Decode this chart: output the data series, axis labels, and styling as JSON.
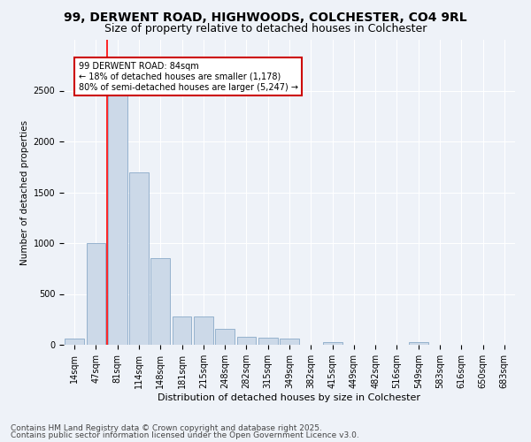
{
  "title1": "99, DERWENT ROAD, HIGHWOODS, COLCHESTER, CO4 9RL",
  "title2": "Size of property relative to detached houses in Colchester",
  "xlabel": "Distribution of detached houses by size in Colchester",
  "ylabel": "Number of detached properties",
  "categories": [
    "14sqm",
    "47sqm",
    "81sqm",
    "114sqm",
    "148sqm",
    "181sqm",
    "215sqm",
    "248sqm",
    "282sqm",
    "315sqm",
    "349sqm",
    "382sqm",
    "415sqm",
    "449sqm",
    "482sqm",
    "516sqm",
    "549sqm",
    "583sqm",
    "616sqm",
    "650sqm",
    "683sqm"
  ],
  "values": [
    60,
    1000,
    2500,
    1700,
    850,
    280,
    280,
    160,
    80,
    70,
    60,
    0,
    30,
    0,
    0,
    0,
    30,
    0,
    0,
    0,
    0
  ],
  "bar_color": "#ccd9e8",
  "bar_edge_color": "#8aaac8",
  "red_line_x": 1.5,
  "annotation_text": "99 DERWENT ROAD: 84sqm\n← 18% of detached houses are smaller (1,178)\n80% of semi-detached houses are larger (5,247) →",
  "annotation_box_color": "#ffffff",
  "annotation_box_edge": "#cc0000",
  "ylim": [
    0,
    3000
  ],
  "yticks": [
    0,
    500,
    1000,
    1500,
    2000,
    2500
  ],
  "footer1": "Contains HM Land Registry data © Crown copyright and database right 2025.",
  "footer2": "Contains public sector information licensed under the Open Government Licence v3.0.",
  "background_color": "#eef2f8",
  "grid_color": "#ffffff",
  "title_fontsize": 10,
  "subtitle_fontsize": 9,
  "tick_fontsize": 7,
  "footer_fontsize": 6.5
}
